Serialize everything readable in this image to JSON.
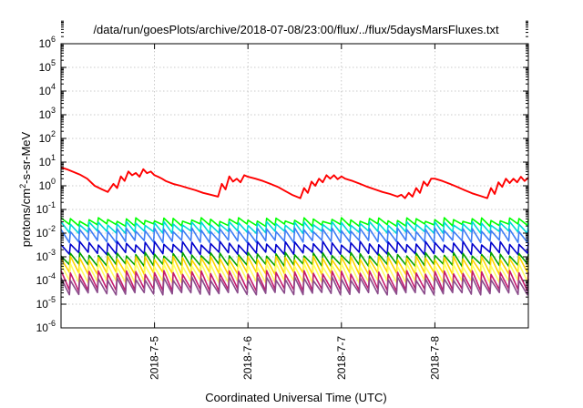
{
  "chart_data": {
    "type": "line",
    "title": "/data/run/goesPlots/archive/2018-07-08/23:00/flux/../flux/5daysMarsFluxes.txt",
    "xlabel": "Coordinated Universal Time (UTC)",
    "ylabel": "protons/cm²-s-sr-MeV",
    "xlabel_ticks": [
      "2018-7-5",
      "2018-7-6",
      "2018-7-7",
      "2018-7-8"
    ],
    "x_tick_days": [
      5,
      6,
      7,
      8
    ],
    "xlim_days": [
      4.0,
      9.0
    ],
    "yscale": "log",
    "ylim": [
      1e-06,
      1000000.0
    ],
    "y_ticks": [
      {
        "base": "10",
        "exp": "6"
      },
      {
        "base": "10",
        "exp": "5"
      },
      {
        "base": "10",
        "exp": "4"
      },
      {
        "base": "10",
        "exp": "3"
      },
      {
        "base": "10",
        "exp": "2"
      },
      {
        "base": "10",
        "exp": "1"
      },
      {
        "base": "10",
        "exp": "0"
      },
      {
        "base": "10",
        "exp": "-1"
      },
      {
        "base": "10",
        "exp": "-2"
      },
      {
        "base": "10",
        "exp": "-3"
      },
      {
        "base": "10",
        "exp": "-4"
      },
      {
        "base": "10",
        "exp": "-5"
      },
      {
        "base": "10",
        "exp": "-6"
      }
    ],
    "grid": true,
    "series": [
      {
        "color": "#ff0000",
        "kind": "points",
        "x": [
          4.0,
          4.06,
          4.12,
          4.2,
          4.28,
          4.36,
          4.44,
          4.5,
          4.56,
          4.6,
          4.64,
          4.68,
          4.72,
          4.76,
          4.8,
          4.84,
          4.88,
          4.92,
          4.96,
          5.0,
          5.04,
          5.08,
          5.12,
          5.2,
          5.28,
          5.36,
          5.44,
          5.52,
          5.6,
          5.68,
          5.72,
          5.76,
          5.8,
          5.84,
          5.88,
          5.92,
          5.96,
          6.0,
          6.08,
          6.16,
          6.24,
          6.32,
          6.4,
          6.48,
          6.56,
          6.6,
          6.64,
          6.68,
          6.72,
          6.76,
          6.8,
          6.84,
          6.88,
          6.92,
          6.96,
          7.0,
          7.04,
          7.12,
          7.2,
          7.28,
          7.36,
          7.44,
          7.52,
          7.6,
          7.64,
          7.68,
          7.72,
          7.76,
          7.8,
          7.84,
          7.88,
          7.92,
          7.96,
          8.0,
          8.08,
          8.16,
          8.24,
          8.32,
          8.4,
          8.48,
          8.56,
          8.6,
          8.64,
          8.68,
          8.72,
          8.76,
          8.8,
          8.84,
          8.88,
          8.92,
          8.96,
          9.0
        ],
        "y": [
          6.0,
          5.0,
          4.0,
          3.0,
          2.0,
          1.0,
          0.7,
          0.55,
          1.2,
          0.8,
          2.5,
          1.6,
          4.0,
          2.8,
          3.5,
          2.4,
          5.0,
          3.4,
          4.0,
          2.8,
          2.4,
          2.0,
          1.6,
          1.2,
          1.0,
          0.8,
          0.65,
          0.5,
          0.42,
          0.35,
          1.2,
          0.7,
          2.5,
          1.5,
          2.0,
          1.4,
          2.8,
          2.4,
          2.0,
          1.6,
          1.2,
          0.9,
          0.6,
          0.4,
          0.3,
          0.8,
          0.5,
          1.5,
          1.0,
          2.0,
          1.4,
          2.8,
          2.0,
          2.8,
          1.9,
          2.5,
          2.0,
          1.6,
          1.2,
          0.9,
          0.7,
          0.55,
          0.45,
          0.35,
          0.42,
          0.3,
          0.5,
          0.35,
          0.8,
          0.5,
          1.5,
          1.0,
          2.0,
          2.0,
          1.6,
          1.2,
          0.9,
          0.65,
          0.48,
          0.38,
          0.3,
          0.8,
          0.45,
          1.4,
          0.9,
          2.0,
          1.3,
          2.0,
          1.4,
          2.4,
          1.6,
          2.2
        ]
      },
      {
        "color": "#00ff00",
        "kind": "sawtooth",
        "peak": 0.038,
        "trough": 0.022
      },
      {
        "color": "#00d8d8",
        "kind": "sawtooth",
        "peak": 0.026,
        "trough": 0.011
      },
      {
        "color": "#3d7df5",
        "kind": "sawtooth",
        "peak": 0.014,
        "trough": 0.0045
      },
      {
        "color": "#0000cc",
        "kind": "sawtooth",
        "peak": 0.0038,
        "trough": 0.0014
      },
      {
        "color": "#00a000",
        "kind": "sawtooth",
        "peak": 0.0013,
        "trough": 0.00045
      },
      {
        "color": "#ffd400",
        "kind": "sawtooth",
        "peak": 0.0009,
        "trough": 0.0002
      },
      {
        "color": "#ffff60",
        "kind": "sawtooth",
        "peak": 0.00045,
        "trough": 9e-05
      },
      {
        "color": "#c61a6e",
        "kind": "sawtooth",
        "peak": 0.00022,
        "trough": 4e-05
      },
      {
        "color": "#8a4a8a",
        "kind": "sawtooth",
        "peak": 0.00012,
        "trough": 2.8e-05
      }
    ],
    "sawtooth_period_days": 0.1
  }
}
